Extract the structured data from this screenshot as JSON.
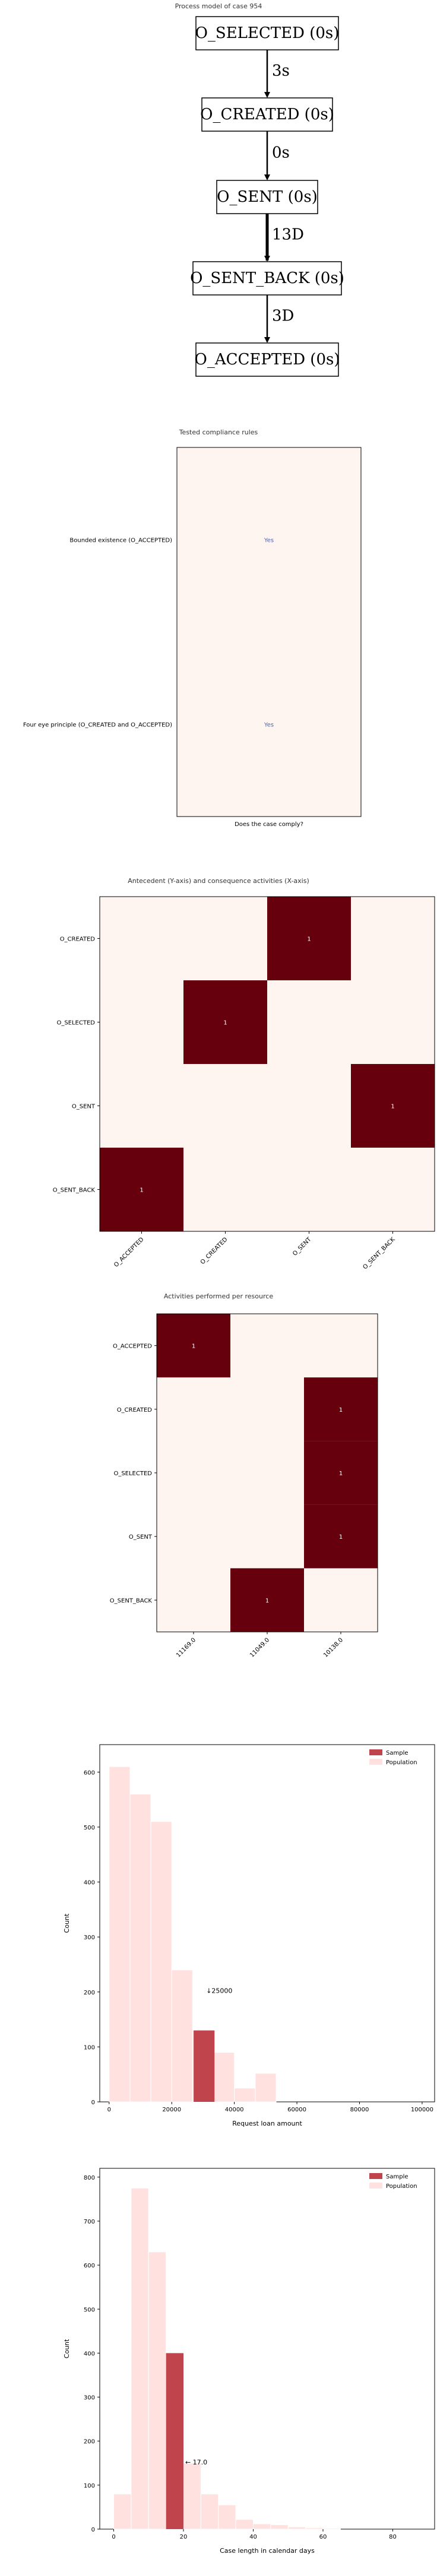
{
  "process_model": {
    "title": "Process model of case 954",
    "nodes": [
      "O_SELECTED (0s)",
      "O_CREATED (0s)",
      "O_SENT (0s)",
      "O_SENT_BACK (0s)",
      "O_ACCEPTED (0s)"
    ],
    "edges": [
      "3s",
      "0s",
      "13D",
      "3D"
    ]
  },
  "chart_data": [
    {
      "type": "heatmap",
      "title": "Tested compliance rules",
      "xlabel": "Does the case comply?",
      "rows": [
        "Bounded existence (O_ACCEPTED)",
        "Four eye principle (O_CREATED and O_ACCEPTED)"
      ],
      "cells": [
        "Yes",
        "Yes"
      ]
    },
    {
      "type": "heatmap",
      "title": "Antecedent (Y-axis) and consequence activities (X-axis)",
      "rows": [
        "O_CREATED",
        "O_SELECTED",
        "O_SENT",
        "O_SENT_BACK"
      ],
      "columns": [
        "O_ACCEPTED",
        "O_CREATED",
        "O_SENT",
        "O_SENT_BACK"
      ],
      "values": [
        [
          0,
          0,
          1,
          0
        ],
        [
          0,
          1,
          0,
          0
        ],
        [
          0,
          0,
          0,
          1
        ],
        [
          1,
          0,
          0,
          0
        ]
      ]
    },
    {
      "type": "heatmap",
      "title": "Activities performed per resource",
      "rows": [
        "O_ACCEPTED",
        "O_CREATED",
        "O_SELECTED",
        "O_SENT",
        "O_SENT_BACK"
      ],
      "columns": [
        "11169.0",
        "11049.0",
        "10138.0"
      ],
      "values": [
        [
          1,
          0,
          0
        ],
        [
          0,
          0,
          1
        ],
        [
          0,
          0,
          1
        ],
        [
          0,
          0,
          1
        ],
        [
          0,
          1,
          0
        ]
      ]
    },
    {
      "type": "bar",
      "xlabel": "Request loan amount",
      "ylabel": "Count",
      "ylim": [
        0,
        650
      ],
      "xlim": [
        -3000,
        104000
      ],
      "xticks": [
        "0",
        "20000",
        "40000",
        "60000",
        "80000",
        "100000"
      ],
      "yticks": [
        "0",
        "100",
        "200",
        "300",
        "400",
        "500",
        "600"
      ],
      "annotation": "↓25000",
      "legend": [
        "Sample",
        "Population"
      ],
      "bin_width": 6670,
      "population": {
        "name": "Population",
        "bin_starts": [
          0,
          6670,
          13340,
          20010,
          26680,
          33350,
          40020,
          46690
        ],
        "values": [
          610,
          560,
          510,
          240,
          130,
          90,
          25,
          52
        ]
      },
      "sample": {
        "name": "Sample",
        "bin_starts": [
          27000
        ],
        "values": [
          130
        ]
      },
      "colors": {
        "sample": "#c0444c",
        "population": "#ffe2e0"
      }
    },
    {
      "type": "bar",
      "xlabel": "Case length in calendar days",
      "ylabel": "Count",
      "ylim": [
        0,
        820
      ],
      "xlim": [
        -4,
        92
      ],
      "xticks": [
        "0",
        "20",
        "40",
        "60",
        "80"
      ],
      "yticks": [
        "0",
        "100",
        "200",
        "300",
        "400",
        "500",
        "600",
        "700",
        "800"
      ],
      "annotation": "← 17.0",
      "legend": [
        "Sample",
        "Population"
      ],
      "bin_width": 5,
      "population": {
        "name": "Population",
        "bin_starts": [
          0,
          5,
          10,
          15,
          20,
          25,
          30,
          35,
          40,
          45,
          50,
          55,
          60
        ],
        "values": [
          80,
          775,
          630,
          400,
          150,
          80,
          55,
          22,
          12,
          10,
          5,
          3,
          2
        ]
      },
      "sample": {
        "name": "Sample",
        "bin_starts": [
          15
        ],
        "values": [
          400
        ]
      },
      "colors": {
        "sample": "#c0444c",
        "population": "#ffe2e0"
      }
    }
  ]
}
